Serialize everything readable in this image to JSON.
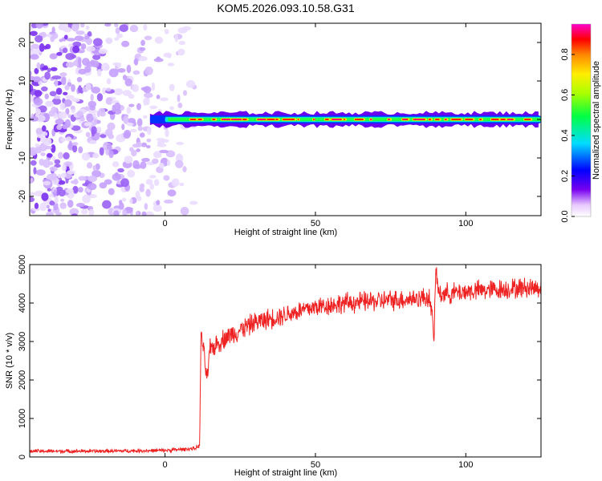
{
  "title": "KOM5.2026.093.10.58.G31",
  "chart_data": [
    {
      "type": "heatmap",
      "title": "KOM5.2026.093.10.58.G31",
      "xlabel": "Height of straight line (km)",
      "ylabel": "Frequency (Hz)",
      "xlim": [
        -45,
        125
      ],
      "ylim": [
        -25,
        25
      ],
      "xticks": [
        0,
        50,
        100
      ],
      "yticks": [
        -20,
        -10,
        0,
        10,
        20
      ],
      "xtick_labels": [
        "0",
        "50",
        "100"
      ],
      "ytick_labels": [
        "-20",
        "-10",
        "0",
        "10",
        "20"
      ],
      "colorbar": {
        "label": "Normalized spectral amplitude",
        "range": [
          0,
          0.95
        ],
        "ticks": [
          "0.0",
          "0.2",
          "0.4",
          "0.6",
          "0.8"
        ],
        "tick_values": [
          0.0,
          0.2,
          0.4,
          0.6,
          0.8
        ]
      },
      "signal_band": {
        "x_start": -5,
        "x_end": 125,
        "freq_center": 0,
        "half_width_hz": 1.5
      },
      "noise_region": {
        "x_start": -45,
        "x_end": 10
      }
    },
    {
      "type": "line",
      "xlabel": "Height of straight line (km)",
      "ylabel": "SNR (10 * v/v)",
      "xlim": [
        -45,
        125
      ],
      "ylim": [
        0,
        5000
      ],
      "xticks": [
        0,
        50,
        100
      ],
      "yticks": [
        0,
        1000,
        2000,
        3000,
        4000,
        5000
      ],
      "xtick_labels": [
        "0",
        "50",
        "100"
      ],
      "ytick_labels": [
        "0",
        "1000",
        "2000",
        "3000",
        "4000",
        "5000"
      ],
      "line_color": "#ee2222",
      "series": [
        {
          "name": "SNR",
          "x": [
            -45,
            -20,
            0,
            10,
            11.5,
            12,
            13,
            14,
            15,
            20,
            30,
            40,
            50,
            60,
            70,
            80,
            88,
            89.5,
            90,
            91,
            95,
            100,
            110,
            120,
            125
          ],
          "y": [
            150,
            150,
            170,
            220,
            300,
            3300,
            2600,
            2000,
            2800,
            3100,
            3500,
            3700,
            3900,
            4000,
            4050,
            4100,
            4150,
            3100,
            4900,
            4250,
            4250,
            4300,
            4350,
            4400,
            4400
          ]
        }
      ]
    }
  ]
}
